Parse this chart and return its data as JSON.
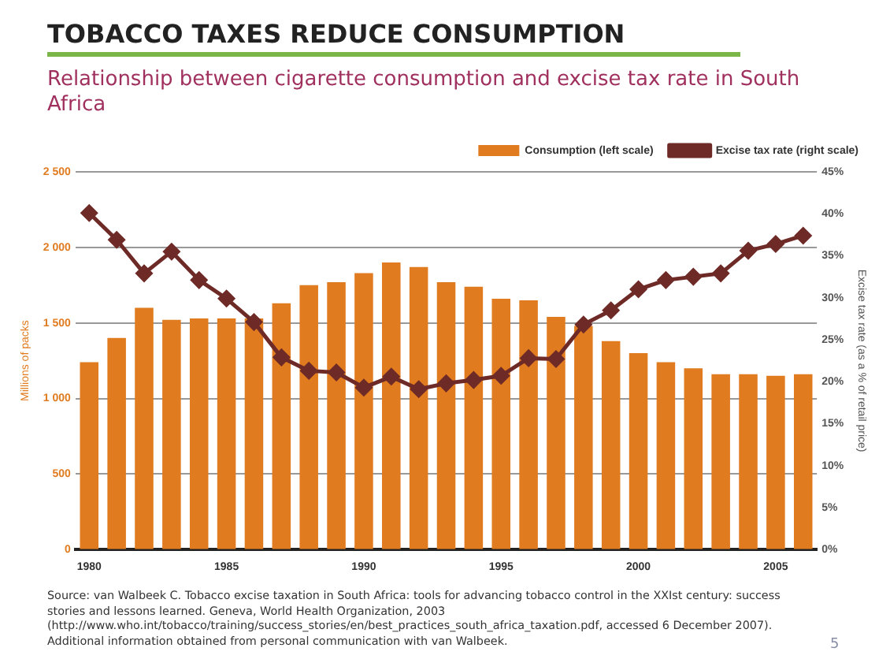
{
  "chart_data": {
    "type": "bar",
    "title": "TOBACCO TAXES REDUCE CONSUMPTION",
    "subtitle": "Relationship between cigarette consumption and excise tax rate in South Africa",
    "ylabel": "Millions of packs",
    "y2label": "Excise tax rate (as a % of retail price)",
    "categories": [
      "1980",
      null,
      null,
      null,
      null,
      "1985",
      null,
      null,
      null,
      null,
      "1990",
      null,
      null,
      null,
      null,
      "1995",
      null,
      null,
      null,
      null,
      "2000",
      null,
      null,
      null,
      null,
      "2005",
      null
    ],
    "series": [
      {
        "name": "Consumption (left scale)",
        "color": "#e07b1f",
        "values": [
          1240,
          1400,
          1600,
          1520,
          1530,
          1530,
          1530,
          1630,
          1750,
          1770,
          1830,
          1900,
          1870,
          1770,
          1740,
          1660,
          1650,
          1540,
          1480,
          1380,
          1300,
          1240,
          1200,
          1160,
          1160,
          1150,
          1160
        ]
      },
      {
        "name": "Excise tax rate (right scale)",
        "type": "line",
        "axis": "y2",
        "color": "#6e2a26",
        "marker": "diamond",
        "values": [
          40.1,
          36.9,
          32.9,
          35.5,
          32.1,
          29.9,
          27.1,
          22.9,
          21.3,
          21.1,
          19.3,
          20.6,
          19.1,
          19.8,
          20.2,
          20.7,
          22.8,
          22.7,
          26.8,
          28.5,
          31.0,
          32.1,
          32.5,
          32.9,
          35.6,
          36.4,
          37.4
        ]
      }
    ],
    "ylim": [
      0,
      2500
    ],
    "yticks": [
      {
        "value": 0,
        "label": "0"
      },
      {
        "value": 500,
        "label": "500"
      },
      {
        "value": 1000,
        "label": "1 000"
      },
      {
        "value": 1500,
        "label": "1 500"
      },
      {
        "value": 2000,
        "label": "2 000"
      },
      {
        "value": 2500,
        "label": "2 500"
      }
    ],
    "y2lim": [
      0,
      45
    ],
    "y2ticks": [
      {
        "value": 0,
        "label": "0%"
      },
      {
        "value": 5,
        "label": "5%"
      },
      {
        "value": 10,
        "label": "10%"
      },
      {
        "value": 15,
        "label": "15%"
      },
      {
        "value": 20,
        "label": "20%"
      },
      {
        "value": 25,
        "label": "25%"
      },
      {
        "value": 30,
        "label": "30%"
      },
      {
        "value": 35,
        "label": "35%"
      },
      {
        "value": 40,
        "label": "40%"
      },
      {
        "value": 45,
        "label": "45%"
      }
    ],
    "grid": "y",
    "legend": "top right",
    "annotations": [
      "Source: van Walbeek C. Tobacco excise taxation in South Africa: tools for advancing tobacco control in the XXIst century: success stories and lessons learned. Geneva, World Health Organization, 2003 (http://www.who.int/tobacco/training/success_stories/en/best_practices_south_africa_taxation.pdf, accessed 6 December 2007). Additional information obtained from personal communication with van Walbeek.",
      "5"
    ]
  }
}
